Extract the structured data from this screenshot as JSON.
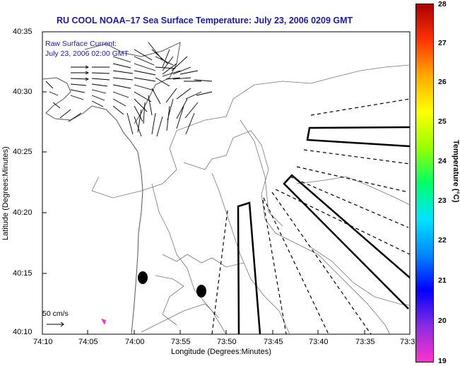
{
  "title": "RU COOL  NOAA–17  Sea Surface Temperature:  July 23, 2006 0209 GMT",
  "annotation": {
    "line1": "Raw Surface Current:",
    "line2": "July 23, 2006 02:00 GMT"
  },
  "scale_label": "50 cm/s",
  "x_axis": {
    "label": "Longitude (Degrees:Minutes)",
    "ticks": [
      "74:10",
      "74:05",
      "74:00",
      "73:55",
      "73:50",
      "73:45",
      "73:40",
      "73:35",
      "73:3"
    ]
  },
  "y_axis": {
    "label": "Latitude (Degrees:Minutes)",
    "ticks": [
      "40:35",
      "40:30",
      "40:25",
      "40:20",
      "40:15",
      "40:10"
    ]
  },
  "colorbar": {
    "label": "Temperature (°C)",
    "ticks": [
      "28",
      "27",
      "26",
      "25",
      "24",
      "23",
      "22",
      "21",
      "20",
      "19"
    ],
    "min": 19,
    "max": 28,
    "colors": [
      "#ff33cc",
      "#8a2be2",
      "#0000ff",
      "#0088ff",
      "#00e5ff",
      "#00ff66",
      "#99ff00",
      "#ffff00",
      "#ffaa00",
      "#ff3300",
      "#aa0000"
    ]
  }
}
